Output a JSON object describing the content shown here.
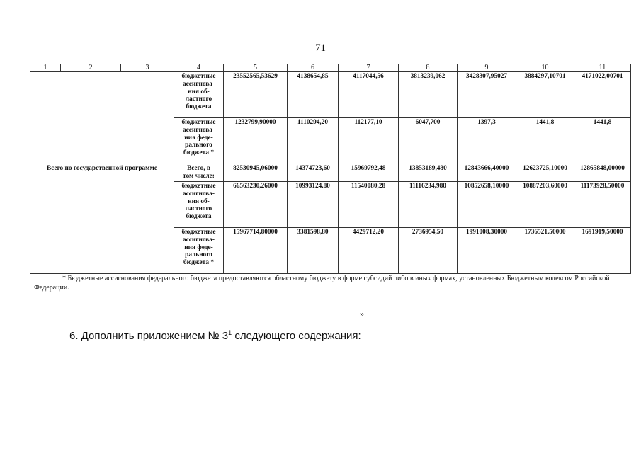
{
  "page_number": "71",
  "table": {
    "header": [
      "1",
      "2",
      "3",
      "4",
      "5",
      "6",
      "7",
      "8",
      "9",
      "10",
      "11"
    ],
    "rows": [
      {
        "program": "",
        "label": "бюджетные\nассигнова-\nния об-\nластного\nбюджета",
        "values": [
          "23552565,53629",
          "4138654,85",
          "4117044,56",
          "3813239,062",
          "3428307,95027",
          "3884297,10701",
          "4171022,00701"
        ]
      },
      {
        "program": "",
        "label": "бюджетные\nассигнова-\nния феде-\nрального\nбюджета *",
        "values": [
          "1232799,90000",
          "1110294,20",
          "112177,10",
          "6047,700",
          "1397,3",
          "1441,8",
          "1441,8"
        ]
      },
      {
        "program": "Всего по государственной программе",
        "label": "Всего, в\nтом числе:",
        "values": [
          "82530945,06000",
          "14374723,60",
          "15969792,48",
          "13853189,480",
          "12843666,40000",
          "12623725,10000",
          "12865848,00000"
        ]
      },
      {
        "program": "",
        "label": "бюджетные\nассигнова-\nния об-\nластного\nбюджета",
        "values": [
          "66563230,26000",
          "10993124,80",
          "11540080,28",
          "11116234,980",
          "10852658,10000",
          "10887203,60000",
          "11173928,50000"
        ]
      },
      {
        "program": "",
        "label": "бюджетные\nассигнова-\nния феде-\nрального\nбюджета *",
        "values": [
          "15967714,80000",
          "3381598,80",
          "4429712,20",
          "2736954,50",
          "1991008,30000",
          "1736521,50000",
          "1691919,50000"
        ]
      }
    ]
  },
  "footnote": "* Бюджетные ассигнования федерального бюджета предоставляются областному бюджету в форме субсидий либо в иных формах, установленных Бюджетным кодексом Российской Федерации.",
  "closing_mark": "».",
  "heading": {
    "text": "6. Дополнить приложением № 3",
    "superscript": "1",
    "tail": " следующего содержания:"
  }
}
